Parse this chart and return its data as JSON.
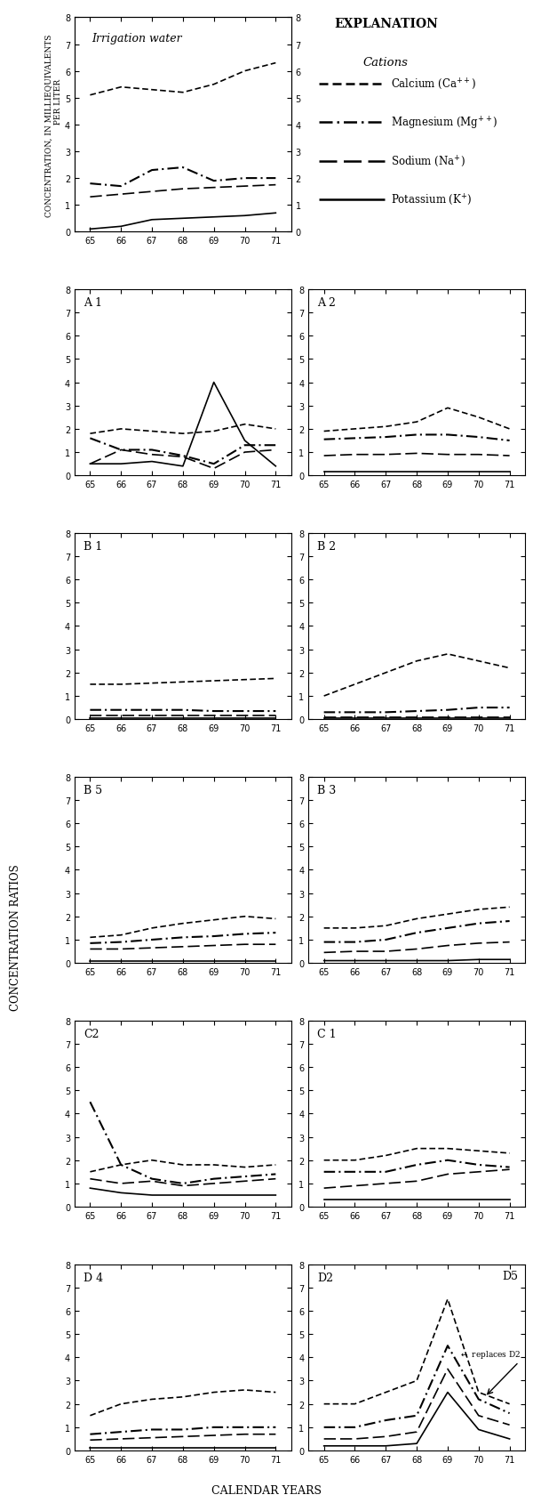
{
  "years": [
    65,
    66,
    67,
    68,
    69,
    70,
    71
  ],
  "irr": {
    "Ca": [
      5.1,
      5.4,
      5.3,
      5.2,
      5.5,
      6.0,
      6.3
    ],
    "Mg": [
      1.8,
      1.7,
      2.3,
      2.4,
      1.9,
      2.0,
      2.0
    ],
    "Na": [
      1.3,
      1.4,
      1.5,
      1.6,
      1.65,
      1.7,
      1.75
    ],
    "K": [
      0.1,
      0.2,
      0.45,
      0.5,
      0.55,
      0.6,
      0.7
    ]
  },
  "A1": {
    "Ca": [
      1.8,
      2.0,
      1.9,
      1.8,
      1.9,
      2.2,
      2.0
    ],
    "Mg": [
      1.6,
      1.1,
      1.1,
      0.85,
      0.5,
      1.3,
      1.3
    ],
    "Na": [
      0.5,
      1.1,
      0.9,
      0.8,
      0.3,
      1.0,
      1.1
    ],
    "K": [
      0.5,
      0.5,
      0.6,
      0.4,
      4.0,
      1.5,
      0.4
    ]
  },
  "A2": {
    "Ca": [
      1.9,
      2.0,
      2.1,
      2.3,
      2.9,
      2.5,
      2.0
    ],
    "Mg": [
      1.55,
      1.6,
      1.65,
      1.75,
      1.75,
      1.65,
      1.5
    ],
    "Na": [
      0.85,
      0.9,
      0.9,
      0.95,
      0.9,
      0.9,
      0.85
    ],
    "K": [
      0.15,
      0.15,
      0.15,
      0.15,
      0.15,
      0.15,
      0.15
    ]
  },
  "B1": {
    "Ca": [
      1.5,
      1.5,
      1.55,
      1.6,
      1.65,
      1.7,
      1.75
    ],
    "Mg": [
      0.4,
      0.4,
      0.4,
      0.4,
      0.35,
      0.35,
      0.35
    ],
    "Na": [
      0.15,
      0.15,
      0.15,
      0.15,
      0.15,
      0.15,
      0.15
    ],
    "K": [
      0.05,
      0.05,
      0.05,
      0.05,
      0.05,
      0.05,
      0.05
    ]
  },
  "B2": {
    "Ca": [
      1.0,
      1.5,
      2.0,
      2.5,
      2.8,
      2.5,
      2.2
    ],
    "Mg": [
      0.3,
      0.3,
      0.3,
      0.35,
      0.4,
      0.5,
      0.5
    ],
    "Na": [
      0.1,
      0.1,
      0.1,
      0.1,
      0.1,
      0.1,
      0.1
    ],
    "K": [
      0.05,
      0.05,
      0.05,
      0.05,
      0.05,
      0.05,
      0.05
    ]
  },
  "B5": {
    "Ca": [
      1.1,
      1.2,
      1.5,
      1.7,
      1.85,
      2.0,
      1.9
    ],
    "Mg": [
      0.85,
      0.9,
      1.0,
      1.1,
      1.15,
      1.25,
      1.3
    ],
    "Na": [
      0.6,
      0.6,
      0.65,
      0.7,
      0.75,
      0.8,
      0.8
    ],
    "K": [
      0.1,
      0.1,
      0.1,
      0.1,
      0.1,
      0.1,
      0.1
    ]
  },
  "B3": {
    "Ca": [
      1.5,
      1.5,
      1.6,
      1.9,
      2.1,
      2.3,
      2.4
    ],
    "Mg": [
      0.9,
      0.9,
      1.0,
      1.3,
      1.5,
      1.7,
      1.8
    ],
    "Na": [
      0.45,
      0.5,
      0.5,
      0.6,
      0.75,
      0.85,
      0.9
    ],
    "K": [
      0.1,
      0.1,
      0.1,
      0.1,
      0.1,
      0.15,
      0.15
    ]
  },
  "C2": {
    "Ca": [
      1.5,
      1.8,
      2.0,
      1.8,
      1.8,
      1.7,
      1.8
    ],
    "Mg": [
      4.5,
      1.8,
      1.2,
      1.0,
      1.2,
      1.3,
      1.4
    ],
    "Na": [
      1.2,
      1.0,
      1.1,
      0.9,
      1.0,
      1.1,
      1.2
    ],
    "K": [
      0.8,
      0.6,
      0.5,
      0.5,
      0.5,
      0.5,
      0.5
    ]
  },
  "C1": {
    "Ca": [
      2.0,
      2.0,
      2.2,
      2.5,
      2.5,
      2.4,
      2.3
    ],
    "Mg": [
      1.5,
      1.5,
      1.5,
      1.8,
      2.0,
      1.8,
      1.7
    ],
    "Na": [
      0.8,
      0.9,
      1.0,
      1.1,
      1.4,
      1.5,
      1.6
    ],
    "K": [
      0.3,
      0.3,
      0.3,
      0.3,
      0.3,
      0.3,
      0.3
    ]
  },
  "D4": {
    "Ca": [
      1.5,
      2.0,
      2.2,
      2.3,
      2.5,
      2.6,
      2.5
    ],
    "Mg": [
      0.7,
      0.8,
      0.9,
      0.9,
      1.0,
      1.0,
      1.0
    ],
    "Na": [
      0.45,
      0.5,
      0.55,
      0.6,
      0.65,
      0.7,
      0.7
    ],
    "K": [
      0.1,
      0.1,
      0.1,
      0.1,
      0.1,
      0.1,
      0.1
    ]
  },
  "D2": {
    "Ca": [
      2.0,
      2.0,
      2.5,
      3.0,
      6.5,
      2.5,
      2.0
    ],
    "Mg": [
      1.0,
      1.0,
      1.3,
      1.5,
      4.5,
      2.2,
      1.6
    ],
    "Na": [
      0.5,
      0.5,
      0.6,
      0.8,
      3.5,
      1.5,
      1.1
    ],
    "K": [
      0.2,
      0.2,
      0.2,
      0.3,
      2.5,
      0.9,
      0.5
    ]
  }
}
